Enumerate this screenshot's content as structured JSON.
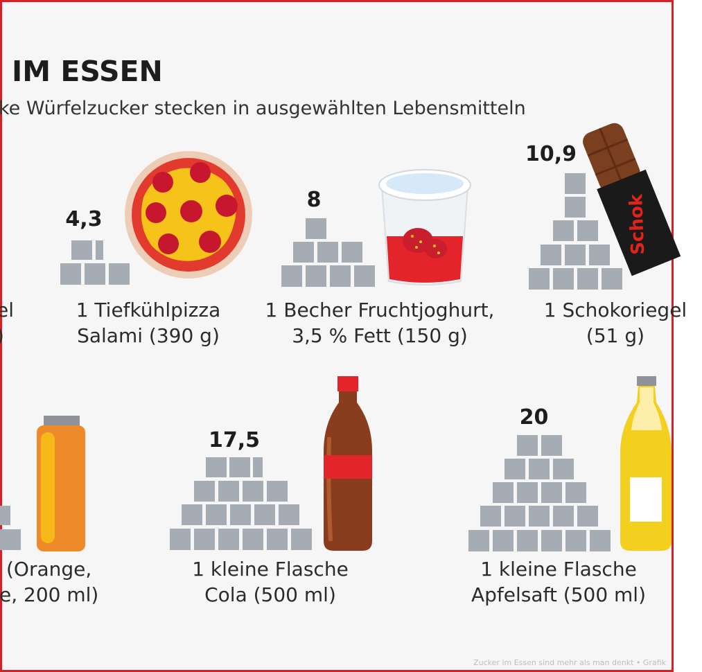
{
  "header": {
    "title": "IM ESSEN",
    "subtitle": "ke Würfelzucker stecken in ausgewählten Lebensmitteln"
  },
  "items": [
    {
      "key": "partial-top-left",
      "value": null,
      "line1": "el",
      "line2": ")"
    },
    {
      "key": "pizza",
      "value": "4,3",
      "line1": "1 Tiefkühlpizza",
      "line2": "Salami (390 g)"
    },
    {
      "key": "joghurt",
      "value": "8",
      "line1": "1 Becher Fruchtjoghurt,",
      "line2": "3,5 % Fett (150 g)"
    },
    {
      "key": "schokoriegel",
      "value": "10,9",
      "line1": "1 Schokoriegel",
      "line2": "(51 g)"
    },
    {
      "key": "saft-orange",
      "value": null,
      "line1": "(Orange,",
      "line2": "e, 200 ml)"
    },
    {
      "key": "cola",
      "value": "17,5",
      "line1": "1 kleine Flasche",
      "line2": "Cola (500 ml)"
    },
    {
      "key": "apfelsaft",
      "value": "20",
      "line1": "1 kleine Flasche",
      "line2": "Apfelsaft (500 ml)"
    }
  ],
  "art": {
    "bar_wrapper_text": "Schok"
  },
  "footer": {
    "credit": "Zucker im Essen sind mehr als man denkt • Grafik"
  },
  "colors": {
    "frame": "#d81f26",
    "cube": "#a5acb3",
    "text": "#1d1d1b",
    "pizza_red": "#e23b2e",
    "pizza_cheese": "#f6c31b",
    "cola_brown": "#8a3d1e",
    "orange_juice": "#ef8a2b",
    "apple_juice": "#f3cf1e"
  },
  "icons": [
    "pizza-icon",
    "yogurt-cup-icon",
    "chocolate-bar-icon",
    "juice-bottle-icon",
    "cola-bottle-icon",
    "apple-juice-bottle-icon",
    "sugar-cube-icon"
  ]
}
